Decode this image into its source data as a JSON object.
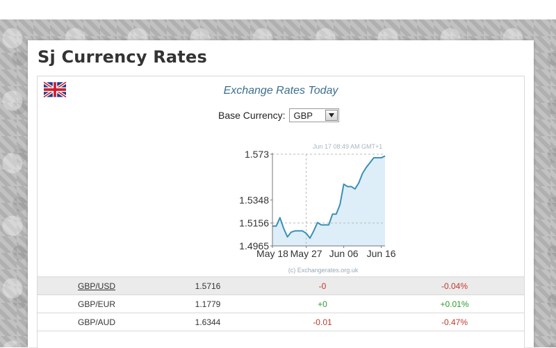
{
  "page": {
    "title": "Sj Currency Rates"
  },
  "widget": {
    "title": "Exchange Rates Today",
    "base_label": "Base Currency:",
    "base_value": "GBP",
    "flag_icon": "uk-flag-icon"
  },
  "chart_data": {
    "type": "area",
    "x_ticks": [
      "May 18",
      "May 27",
      "Jun 06",
      "Jun 16"
    ],
    "y_ticks": [
      "1.573",
      "1.5348",
      "1.5156",
      "1.4965"
    ],
    "ylim": [
      1.4965,
      1.573
    ],
    "timestamp": "Jun 17 08:49 AM GMT+1",
    "credit": "(c) Exchangerates.org.uk",
    "series": [
      {
        "x": [
          "May 18",
          "May 19",
          "May 20",
          "May 21",
          "May 22",
          "May 23",
          "May 24",
          "May 25",
          "May 26",
          "May 27",
          "May 28",
          "May 29",
          "May 30",
          "May 31",
          "Jun 01",
          "Jun 02",
          "Jun 03",
          "Jun 04",
          "Jun 05",
          "Jun 06",
          "Jun 07",
          "Jun 08",
          "Jun 09",
          "Jun 10",
          "Jun 11",
          "Jun 12",
          "Jun 13",
          "Jun 14",
          "Jun 15",
          "Jun 16",
          "Jun 17"
        ],
        "values": [
          1.513,
          1.513,
          1.52,
          1.511,
          1.504,
          1.508,
          1.509,
          1.509,
          1.509,
          1.507,
          1.503,
          1.509,
          1.516,
          1.514,
          1.514,
          1.514,
          1.523,
          1.523,
          1.531,
          1.548,
          1.546,
          1.546,
          1.544,
          1.549,
          1.557,
          1.562,
          1.566,
          1.57,
          1.57,
          1.57,
          1.5715
        ],
        "color": "#3a8fb7",
        "fill": "#ddeef9"
      }
    ],
    "grid": {
      "x": [
        "May 27"
      ],
      "y": [
        1.573,
        1.5156
      ]
    }
  },
  "rates": [
    {
      "pair": "GBP/USD",
      "rate": "1.5716",
      "change": "-0",
      "percent": "-0.04%",
      "trend": "neg"
    },
    {
      "pair": "GBP/EUR",
      "rate": "1.1779",
      "change": "+0",
      "percent": "+0.01%",
      "trend": "pos"
    },
    {
      "pair": "GBP/AUD",
      "rate": "1.6344",
      "change": "-0.01",
      "percent": "-0.47%",
      "trend": "neg"
    }
  ]
}
